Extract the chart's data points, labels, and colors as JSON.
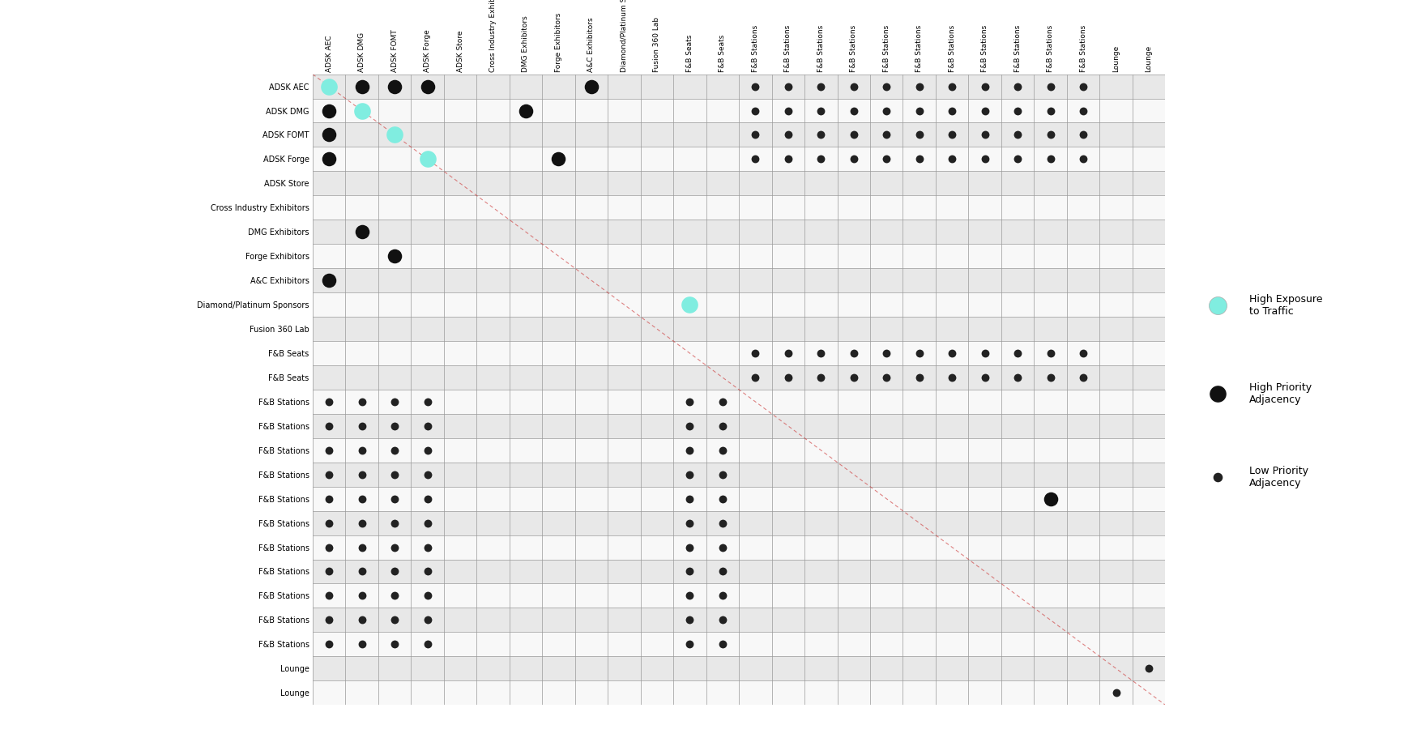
{
  "labels": [
    "ADSK AEC",
    "ADSK DMG",
    "ADSK FOMT",
    "ADSK Forge",
    "ADSK Store",
    "Cross Industry Exhibitors",
    "DMG Exhibitors",
    "Forge Exhibitors",
    "A&C Exhibitors",
    "Diamond/Platinum Sponsors",
    "Fusion 360 Lab",
    "F&B Seats",
    "F&B Seats",
    "F&B Stations",
    "F&B Stations",
    "F&B Stations",
    "F&B Stations",
    "F&B Stations",
    "F&B Stations",
    "F&B Stations",
    "F&B Stations",
    "F&B Stations",
    "F&B Stations",
    "F&B Stations",
    "Lounge",
    "Lounge"
  ],
  "n": 26,
  "bg_color": "#e8e8e8",
  "alt_color": "#f8f8f8",
  "grid_color_major": "#999999",
  "grid_color_minor": "#cccccc",
  "diagonal_color": "#cc3333",
  "high_exposure_color": "#80ede0",
  "high_priority_color": "#111111",
  "low_priority_color": "#222222",
  "high_exposure_size": 220,
  "high_priority_size": 160,
  "low_priority_size": 50,
  "dots": [
    {
      "row": 0,
      "col": 0,
      "type": "high_exposure"
    },
    {
      "row": 0,
      "col": 1,
      "type": "high_priority"
    },
    {
      "row": 0,
      "col": 2,
      "type": "high_priority"
    },
    {
      "row": 0,
      "col": 3,
      "type": "high_priority"
    },
    {
      "row": 0,
      "col": 8,
      "type": "high_priority"
    },
    {
      "row": 0,
      "col": 13,
      "type": "low_priority"
    },
    {
      "row": 0,
      "col": 14,
      "type": "low_priority"
    },
    {
      "row": 0,
      "col": 15,
      "type": "low_priority"
    },
    {
      "row": 0,
      "col": 16,
      "type": "low_priority"
    },
    {
      "row": 0,
      "col": 17,
      "type": "low_priority"
    },
    {
      "row": 0,
      "col": 18,
      "type": "low_priority"
    },
    {
      "row": 0,
      "col": 19,
      "type": "low_priority"
    },
    {
      "row": 0,
      "col": 20,
      "type": "low_priority"
    },
    {
      "row": 0,
      "col": 21,
      "type": "low_priority"
    },
    {
      "row": 0,
      "col": 22,
      "type": "low_priority"
    },
    {
      "row": 0,
      "col": 23,
      "type": "low_priority"
    },
    {
      "row": 1,
      "col": 0,
      "type": "high_priority"
    },
    {
      "row": 1,
      "col": 1,
      "type": "high_exposure"
    },
    {
      "row": 1,
      "col": 6,
      "type": "high_priority"
    },
    {
      "row": 1,
      "col": 13,
      "type": "low_priority"
    },
    {
      "row": 1,
      "col": 14,
      "type": "low_priority"
    },
    {
      "row": 1,
      "col": 15,
      "type": "low_priority"
    },
    {
      "row": 1,
      "col": 16,
      "type": "low_priority"
    },
    {
      "row": 1,
      "col": 17,
      "type": "low_priority"
    },
    {
      "row": 1,
      "col": 18,
      "type": "low_priority"
    },
    {
      "row": 1,
      "col": 19,
      "type": "low_priority"
    },
    {
      "row": 1,
      "col": 20,
      "type": "low_priority"
    },
    {
      "row": 1,
      "col": 21,
      "type": "low_priority"
    },
    {
      "row": 1,
      "col": 22,
      "type": "low_priority"
    },
    {
      "row": 1,
      "col": 23,
      "type": "low_priority"
    },
    {
      "row": 2,
      "col": 0,
      "type": "high_priority"
    },
    {
      "row": 2,
      "col": 2,
      "type": "high_exposure"
    },
    {
      "row": 2,
      "col": 13,
      "type": "low_priority"
    },
    {
      "row": 2,
      "col": 14,
      "type": "low_priority"
    },
    {
      "row": 2,
      "col": 15,
      "type": "low_priority"
    },
    {
      "row": 2,
      "col": 16,
      "type": "low_priority"
    },
    {
      "row": 2,
      "col": 17,
      "type": "low_priority"
    },
    {
      "row": 2,
      "col": 18,
      "type": "low_priority"
    },
    {
      "row": 2,
      "col": 19,
      "type": "low_priority"
    },
    {
      "row": 2,
      "col": 20,
      "type": "low_priority"
    },
    {
      "row": 2,
      "col": 21,
      "type": "low_priority"
    },
    {
      "row": 2,
      "col": 22,
      "type": "low_priority"
    },
    {
      "row": 2,
      "col": 23,
      "type": "low_priority"
    },
    {
      "row": 3,
      "col": 0,
      "type": "high_priority"
    },
    {
      "row": 3,
      "col": 3,
      "type": "high_exposure"
    },
    {
      "row": 3,
      "col": 7,
      "type": "high_priority"
    },
    {
      "row": 3,
      "col": 13,
      "type": "low_priority"
    },
    {
      "row": 3,
      "col": 14,
      "type": "low_priority"
    },
    {
      "row": 3,
      "col": 15,
      "type": "low_priority"
    },
    {
      "row": 3,
      "col": 16,
      "type": "low_priority"
    },
    {
      "row": 3,
      "col": 17,
      "type": "low_priority"
    },
    {
      "row": 3,
      "col": 18,
      "type": "low_priority"
    },
    {
      "row": 3,
      "col": 19,
      "type": "low_priority"
    },
    {
      "row": 3,
      "col": 20,
      "type": "low_priority"
    },
    {
      "row": 3,
      "col": 21,
      "type": "low_priority"
    },
    {
      "row": 3,
      "col": 22,
      "type": "low_priority"
    },
    {
      "row": 3,
      "col": 23,
      "type": "low_priority"
    },
    {
      "row": 6,
      "col": 1,
      "type": "high_priority"
    },
    {
      "row": 7,
      "col": 2,
      "type": "high_priority"
    },
    {
      "row": 8,
      "col": 0,
      "type": "high_priority"
    },
    {
      "row": 9,
      "col": 11,
      "type": "high_exposure"
    },
    {
      "row": 11,
      "col": 13,
      "type": "low_priority"
    },
    {
      "row": 11,
      "col": 14,
      "type": "low_priority"
    },
    {
      "row": 11,
      "col": 15,
      "type": "low_priority"
    },
    {
      "row": 11,
      "col": 16,
      "type": "low_priority"
    },
    {
      "row": 11,
      "col": 17,
      "type": "low_priority"
    },
    {
      "row": 11,
      "col": 18,
      "type": "low_priority"
    },
    {
      "row": 11,
      "col": 19,
      "type": "low_priority"
    },
    {
      "row": 11,
      "col": 20,
      "type": "low_priority"
    },
    {
      "row": 11,
      "col": 21,
      "type": "low_priority"
    },
    {
      "row": 11,
      "col": 22,
      "type": "low_priority"
    },
    {
      "row": 11,
      "col": 23,
      "type": "low_priority"
    },
    {
      "row": 12,
      "col": 13,
      "type": "low_priority"
    },
    {
      "row": 12,
      "col": 14,
      "type": "low_priority"
    },
    {
      "row": 12,
      "col": 15,
      "type": "low_priority"
    },
    {
      "row": 12,
      "col": 16,
      "type": "low_priority"
    },
    {
      "row": 12,
      "col": 17,
      "type": "low_priority"
    },
    {
      "row": 12,
      "col": 18,
      "type": "low_priority"
    },
    {
      "row": 12,
      "col": 19,
      "type": "low_priority"
    },
    {
      "row": 12,
      "col": 20,
      "type": "low_priority"
    },
    {
      "row": 12,
      "col": 21,
      "type": "low_priority"
    },
    {
      "row": 12,
      "col": 22,
      "type": "low_priority"
    },
    {
      "row": 12,
      "col": 23,
      "type": "low_priority"
    },
    {
      "row": 13,
      "col": 0,
      "type": "low_priority"
    },
    {
      "row": 13,
      "col": 1,
      "type": "low_priority"
    },
    {
      "row": 13,
      "col": 2,
      "type": "low_priority"
    },
    {
      "row": 13,
      "col": 3,
      "type": "low_priority"
    },
    {
      "row": 13,
      "col": 11,
      "type": "low_priority"
    },
    {
      "row": 13,
      "col": 12,
      "type": "low_priority"
    },
    {
      "row": 14,
      "col": 0,
      "type": "low_priority"
    },
    {
      "row": 14,
      "col": 1,
      "type": "low_priority"
    },
    {
      "row": 14,
      "col": 2,
      "type": "low_priority"
    },
    {
      "row": 14,
      "col": 3,
      "type": "low_priority"
    },
    {
      "row": 14,
      "col": 11,
      "type": "low_priority"
    },
    {
      "row": 14,
      "col": 12,
      "type": "low_priority"
    },
    {
      "row": 15,
      "col": 0,
      "type": "low_priority"
    },
    {
      "row": 15,
      "col": 1,
      "type": "low_priority"
    },
    {
      "row": 15,
      "col": 2,
      "type": "low_priority"
    },
    {
      "row": 15,
      "col": 3,
      "type": "low_priority"
    },
    {
      "row": 15,
      "col": 11,
      "type": "low_priority"
    },
    {
      "row": 15,
      "col": 12,
      "type": "low_priority"
    },
    {
      "row": 16,
      "col": 0,
      "type": "low_priority"
    },
    {
      "row": 16,
      "col": 1,
      "type": "low_priority"
    },
    {
      "row": 16,
      "col": 2,
      "type": "low_priority"
    },
    {
      "row": 16,
      "col": 3,
      "type": "low_priority"
    },
    {
      "row": 16,
      "col": 11,
      "type": "low_priority"
    },
    {
      "row": 16,
      "col": 12,
      "type": "low_priority"
    },
    {
      "row": 17,
      "col": 0,
      "type": "low_priority"
    },
    {
      "row": 17,
      "col": 1,
      "type": "low_priority"
    },
    {
      "row": 17,
      "col": 2,
      "type": "low_priority"
    },
    {
      "row": 17,
      "col": 3,
      "type": "low_priority"
    },
    {
      "row": 17,
      "col": 11,
      "type": "low_priority"
    },
    {
      "row": 17,
      "col": 12,
      "type": "low_priority"
    },
    {
      "row": 17,
      "col": 22,
      "type": "high_priority"
    },
    {
      "row": 18,
      "col": 0,
      "type": "low_priority"
    },
    {
      "row": 18,
      "col": 1,
      "type": "low_priority"
    },
    {
      "row": 18,
      "col": 2,
      "type": "low_priority"
    },
    {
      "row": 18,
      "col": 3,
      "type": "low_priority"
    },
    {
      "row": 18,
      "col": 11,
      "type": "low_priority"
    },
    {
      "row": 18,
      "col": 12,
      "type": "low_priority"
    },
    {
      "row": 19,
      "col": 0,
      "type": "low_priority"
    },
    {
      "row": 19,
      "col": 1,
      "type": "low_priority"
    },
    {
      "row": 19,
      "col": 2,
      "type": "low_priority"
    },
    {
      "row": 19,
      "col": 3,
      "type": "low_priority"
    },
    {
      "row": 19,
      "col": 11,
      "type": "low_priority"
    },
    {
      "row": 19,
      "col": 12,
      "type": "low_priority"
    },
    {
      "row": 20,
      "col": 0,
      "type": "low_priority"
    },
    {
      "row": 20,
      "col": 1,
      "type": "low_priority"
    },
    {
      "row": 20,
      "col": 2,
      "type": "low_priority"
    },
    {
      "row": 20,
      "col": 3,
      "type": "low_priority"
    },
    {
      "row": 20,
      "col": 11,
      "type": "low_priority"
    },
    {
      "row": 20,
      "col": 12,
      "type": "low_priority"
    },
    {
      "row": 21,
      "col": 0,
      "type": "low_priority"
    },
    {
      "row": 21,
      "col": 1,
      "type": "low_priority"
    },
    {
      "row": 21,
      "col": 2,
      "type": "low_priority"
    },
    {
      "row": 21,
      "col": 3,
      "type": "low_priority"
    },
    {
      "row": 21,
      "col": 11,
      "type": "low_priority"
    },
    {
      "row": 21,
      "col": 12,
      "type": "low_priority"
    },
    {
      "row": 22,
      "col": 0,
      "type": "low_priority"
    },
    {
      "row": 22,
      "col": 1,
      "type": "low_priority"
    },
    {
      "row": 22,
      "col": 2,
      "type": "low_priority"
    },
    {
      "row": 22,
      "col": 3,
      "type": "low_priority"
    },
    {
      "row": 22,
      "col": 11,
      "type": "low_priority"
    },
    {
      "row": 22,
      "col": 12,
      "type": "low_priority"
    },
    {
      "row": 23,
      "col": 0,
      "type": "low_priority"
    },
    {
      "row": 23,
      "col": 1,
      "type": "low_priority"
    },
    {
      "row": 23,
      "col": 2,
      "type": "low_priority"
    },
    {
      "row": 23,
      "col": 3,
      "type": "low_priority"
    },
    {
      "row": 23,
      "col": 11,
      "type": "low_priority"
    },
    {
      "row": 23,
      "col": 12,
      "type": "low_priority"
    },
    {
      "row": 24,
      "col": 25,
      "type": "low_priority"
    },
    {
      "row": 25,
      "col": 24,
      "type": "low_priority"
    }
  ],
  "alternating_rows": [
    0,
    2,
    4,
    6,
    8,
    10,
    12,
    14,
    16,
    18,
    20,
    22,
    24
  ]
}
